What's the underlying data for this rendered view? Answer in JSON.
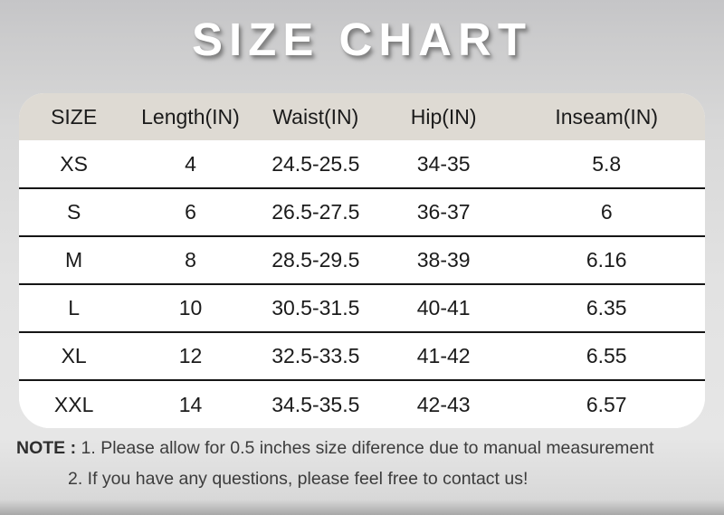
{
  "page": {
    "title": "SIZE CHART"
  },
  "chart_data": {
    "type": "table",
    "title": "SIZE CHART",
    "columns": [
      "SIZE",
      "Length(IN)",
      "Waist(IN)",
      "Hip(IN)",
      "Inseam(IN)"
    ],
    "rows": [
      [
        "XS",
        "4",
        "24.5-25.5",
        "34-35",
        "5.8"
      ],
      [
        "S",
        "6",
        "26.5-27.5",
        "36-37",
        "6"
      ],
      [
        "M",
        "8",
        "28.5-29.5",
        "38-39",
        "6.16"
      ],
      [
        "L",
        "10",
        "30.5-31.5",
        "40-41",
        "6.35"
      ],
      [
        "XL",
        "12",
        "32.5-33.5",
        "41-42",
        "6.55"
      ],
      [
        "XXL",
        "14",
        "34.5-35.5",
        "42-43",
        "6.57"
      ]
    ],
    "units": "inches",
    "layout": {
      "header_row": true,
      "row_dividers": true,
      "rounded_corners": true
    }
  },
  "note": {
    "label": "NOTE :",
    "line1": "1. Please allow for 0.5 inches size diference due to manual measurement",
    "line2": "2. If you have any questions, please feel free to contact us!"
  },
  "colors": {
    "title_text": "#ffffff",
    "title_shadow": "#6a6a6a",
    "header_bg": "#dedad3",
    "row_bg": "#ffffff",
    "divider": "#161616",
    "table_text": "#1b1b1b",
    "note_text": "#3c3c3c",
    "page_bg_top": "#c5c5c7",
    "page_bg_mid": "#e4e4e4",
    "page_bg_bottom_edge": "#a8a8a8"
  }
}
